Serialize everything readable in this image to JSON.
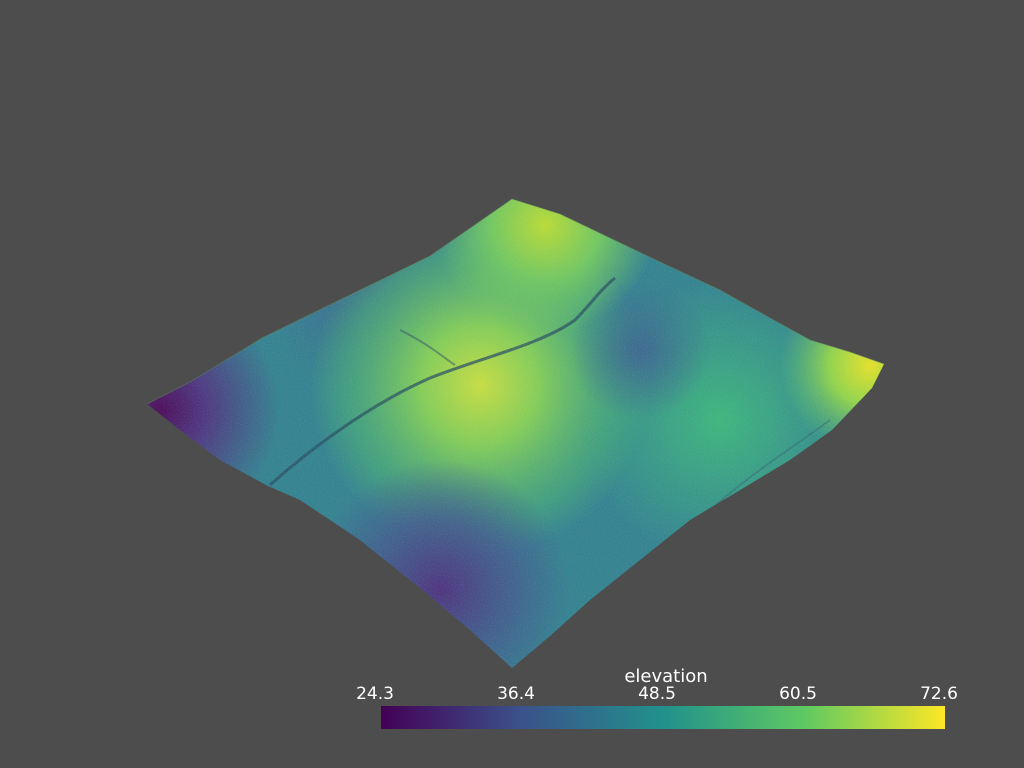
{
  "scene": {
    "background_color": "#4d4d4d",
    "subject": "terrain-surface"
  },
  "scalar_bar": {
    "title": "elevation",
    "ticks": [
      "24.3",
      "36.4",
      "48.5",
      "60.5",
      "72.6"
    ],
    "range": [
      24.3,
      72.6
    ],
    "colormap": "viridis",
    "colors": [
      "#440154",
      "#3b528b",
      "#21918c",
      "#5ec962",
      "#fde725"
    ]
  }
}
